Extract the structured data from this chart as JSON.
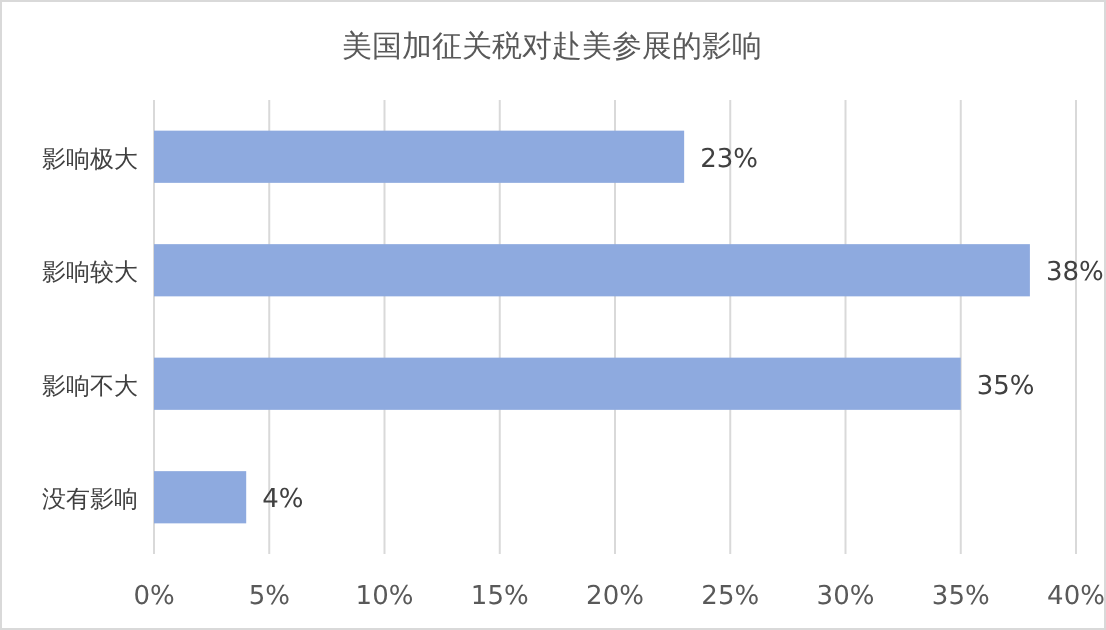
{
  "chart_data": {
    "type": "bar",
    "orientation": "horizontal",
    "title": "美国加征关税对赴美参展的影响",
    "categories": [
      "影响极大",
      "影响较大",
      "影响不大",
      "没有影响"
    ],
    "values": [
      23,
      38,
      35,
      4
    ],
    "value_labels": [
      "23%",
      "38%",
      "35%",
      "4%"
    ],
    "color": "#8eaadf",
    "xlim": [
      0,
      40
    ],
    "xticks": [
      {
        "value": 0,
        "label": "0%"
      },
      {
        "value": 5,
        "label": "5%"
      },
      {
        "value": 10,
        "label": "10%"
      },
      {
        "value": 15,
        "label": "15%"
      },
      {
        "value": 20,
        "label": "20%"
      },
      {
        "value": 25,
        "label": "25%"
      },
      {
        "value": 30,
        "label": "30%"
      },
      {
        "value": 35,
        "label": "35%"
      },
      {
        "value": 40,
        "label": "40%"
      }
    ],
    "grid": "x"
  }
}
